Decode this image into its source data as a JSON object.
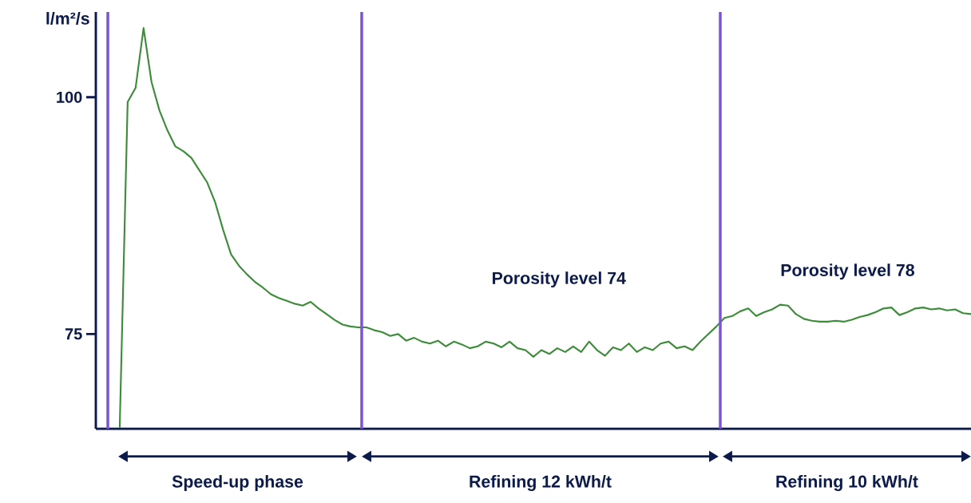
{
  "chart_data": {
    "type": "line",
    "ylabel": "l/m²/s",
    "categories": [
      null,
      null,
      null,
      null,
      null,
      null,
      null,
      null,
      null,
      null,
      null,
      null,
      null,
      null,
      null,
      null,
      null,
      null,
      null,
      null,
      null,
      null,
      null,
      null,
      null,
      null,
      null,
      null,
      null,
      null,
      null,
      null,
      null,
      null,
      null,
      null,
      null,
      null,
      null,
      null,
      null,
      null,
      null,
      null,
      null,
      null,
      null,
      null,
      null,
      null,
      null,
      null,
      null,
      null,
      null,
      null,
      null,
      null,
      null,
      null,
      null,
      null,
      null,
      null,
      null,
      null,
      null,
      null,
      null,
      null,
      null,
      null,
      null,
      null,
      null,
      null,
      null,
      null,
      null,
      null,
      null,
      null,
      null,
      null,
      null,
      null,
      null,
      null,
      null,
      null,
      null,
      null,
      null,
      null,
      null,
      null,
      null,
      null,
      null,
      null,
      null,
      null,
      null,
      null,
      null,
      null,
      null,
      null,
      null,
      null,
      null
    ],
    "values": [
      null,
      null,
      null,
      65.1,
      99.5,
      101.0,
      107.3,
      101.6,
      98.6,
      96.5,
      94.8,
      94.3,
      93.6,
      92.3,
      91.0,
      88.9,
      86.0,
      83.4,
      82.2,
      81.3,
      80.5,
      79.9,
      79.2,
      78.8,
      78.5,
      78.2,
      78.0,
      78.4,
      77.7,
      77.1,
      76.5,
      76.0,
      75.8,
      75.7,
      75.7,
      75.4,
      75.2,
      74.8,
      75.0,
      74.3,
      74.6,
      74.2,
      74.0,
      74.3,
      73.7,
      74.2,
      73.9,
      73.5,
      73.7,
      74.2,
      74.0,
      73.6,
      74.2,
      73.5,
      73.3,
      72.6,
      73.3,
      72.9,
      73.5,
      73.1,
      73.7,
      73.1,
      74.2,
      73.3,
      72.7,
      73.6,
      73.3,
      74.0,
      73.1,
      73.6,
      73.3,
      74.0,
      74.2,
      73.5,
      73.7,
      73.3,
      74.2,
      75.0,
      75.8,
      76.7,
      76.9,
      77.4,
      77.7,
      76.9,
      77.3,
      77.6,
      78.1,
      78.0,
      77.1,
      76.6,
      76.4,
      76.3,
      76.3,
      76.4,
      76.3,
      76.5,
      76.8,
      77.0,
      77.3,
      77.7,
      77.8,
      77.0,
      77.3,
      77.7,
      77.8,
      77.6,
      77.7,
      77.5,
      77.6,
      77.2,
      77.1
    ],
    "color": "#3d8c3a",
    "ylim": [
      65,
      109
    ],
    "yticks": [
      75,
      100
    ],
    "grid": false,
    "marker": "none",
    "line_style": "solid",
    "annotations": [
      "Porosity level 74",
      "Porosity level 78",
      "Speed-up phase",
      "Refining 12 kWh/t",
      "Refining 10 kWh/t"
    ]
  }
}
